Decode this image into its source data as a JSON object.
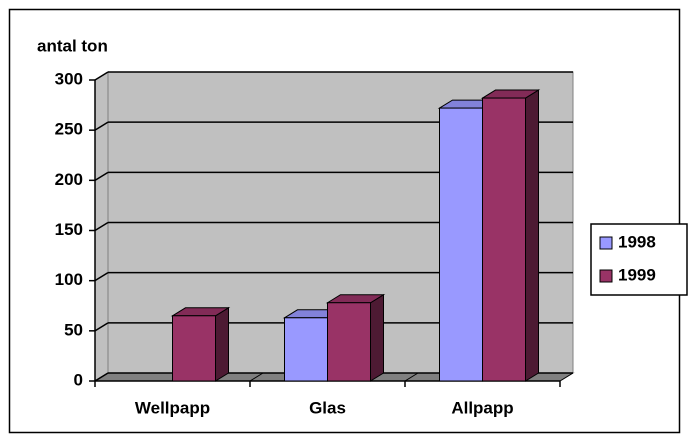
{
  "chart_data": {
    "type": "bar3d",
    "y_label": "antal ton",
    "categories": [
      "Wellpapp",
      "Glas",
      "Allpapp"
    ],
    "series": [
      {
        "name": "1998",
        "color": "#9999ff",
        "values": [
          0,
          63,
          272
        ]
      },
      {
        "name": "1999",
        "color": "#993366",
        "values": [
          65,
          78,
          282
        ]
      }
    ],
    "ylim": [
      0,
      300
    ],
    "yticks": [
      0,
      50,
      100,
      150,
      200,
      250,
      300
    ],
    "grid": true,
    "legend": "right"
  }
}
